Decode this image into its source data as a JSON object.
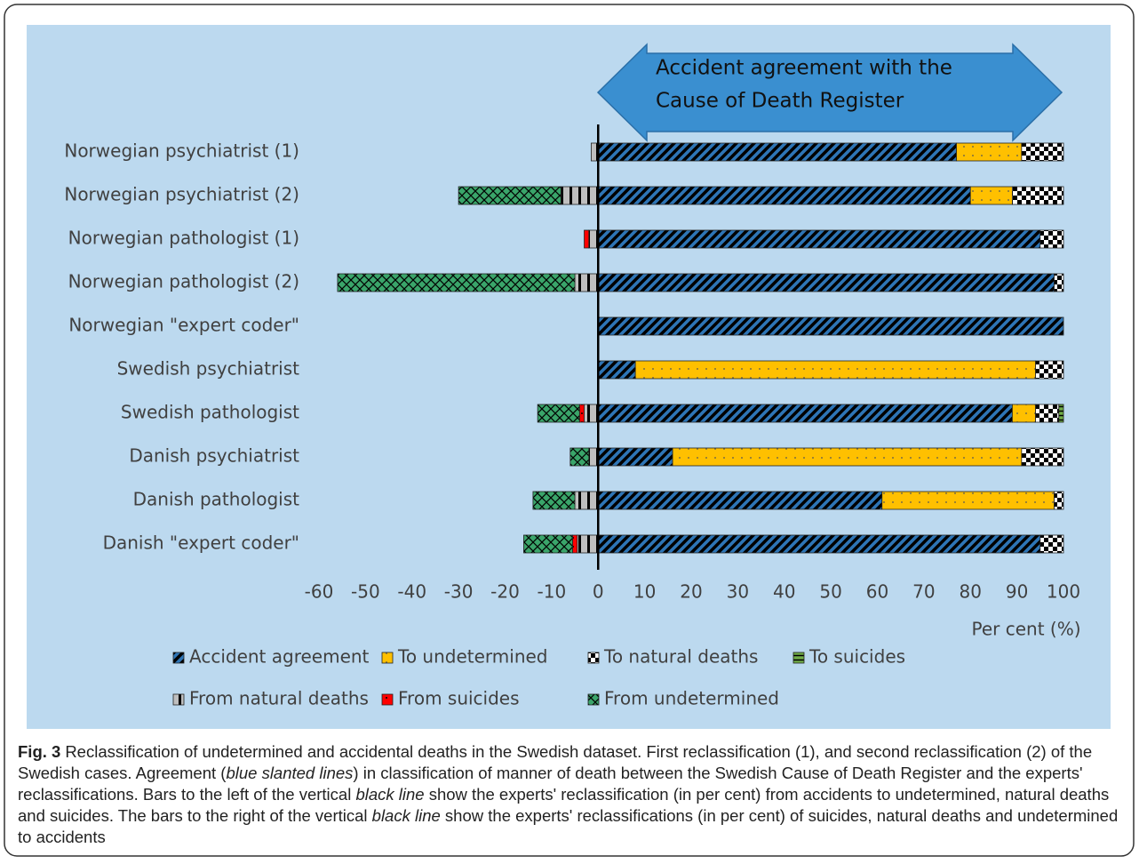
{
  "chart_data": {
    "type": "bar",
    "orientation": "horizontal",
    "stacked": true,
    "annotation_lines": [
      "Accident agreement with the",
      "Cause of Death Register"
    ],
    "categories": [
      "Norwegian psychiatrist (1)",
      "Norwegian psychiatrist (2)",
      "Norwegian pathologist (1)",
      "Norwegian pathologist (2)",
      "Norwegian \"expert coder\"",
      "Swedish psychiatrist",
      "Swedish pathologist",
      "Danish psychiatrist",
      "Danish pathologist",
      "Danish \"expert coder\""
    ],
    "series": [
      {
        "name": "Accident agreement",
        "color": "#2e75b6",
        "values": [
          77,
          80,
          95,
          98,
          100,
          8,
          89,
          16,
          61,
          95
        ]
      },
      {
        "name": "To undetermined",
        "color": "#ffc000",
        "values": [
          14,
          9,
          null,
          null,
          null,
          86,
          5,
          75,
          37,
          null
        ]
      },
      {
        "name": "To natural deaths",
        "color": "#ffffff",
        "values": [
          9,
          11,
          5,
          2,
          null,
          6,
          5,
          9,
          2,
          5
        ]
      },
      {
        "name": "To suicides",
        "color": "#70ad47",
        "values": [
          null,
          null,
          null,
          null,
          null,
          null,
          1,
          null,
          null,
          null
        ]
      },
      {
        "name": "From natural deaths",
        "color": "#bfbfbf",
        "values": [
          -1.5,
          -8,
          -2,
          -5,
          null,
          null,
          -3,
          -2,
          -5,
          -4.5
        ]
      },
      {
        "name": "From suicides",
        "color": "#ff0000",
        "values": [
          null,
          null,
          -1,
          null,
          null,
          null,
          -1,
          null,
          null,
          -1
        ]
      },
      {
        "name": "From undetermined",
        "color": "#3aa56a",
        "values": [
          null,
          -22,
          null,
          -51,
          null,
          null,
          -9,
          -4,
          -9,
          -10.5
        ]
      }
    ],
    "xlim": [
      -60,
      100
    ],
    "xticks": [
      -60,
      -50,
      -40,
      -30,
      -20,
      -10,
      0,
      10,
      20,
      30,
      40,
      50,
      60,
      70,
      80,
      90,
      100
    ],
    "xlabel": "Per cent (%)",
    "grid": false
  },
  "caption": {
    "label": "Fig. 3",
    "parts": [
      "Reclassification of undetermined and accidental deaths in the Swedish dataset. First reclassification (1), and second reclassification (2) of the Swedish cases. Agreement (",
      "blue slanted lines",
      ") in classification of manner of death between the Swedish Cause of Death Register and the experts' reclassifications. Bars to the left of the vertical ",
      "black line",
      " show the experts' reclassification (in per cent) from accidents to undetermined, natural deaths and suicides. The bars to the right of the vertical ",
      "black line",
      " show the experts' reclassifications (in per cent) of suicides, natural deaths and undetermined to accidents"
    ]
  }
}
